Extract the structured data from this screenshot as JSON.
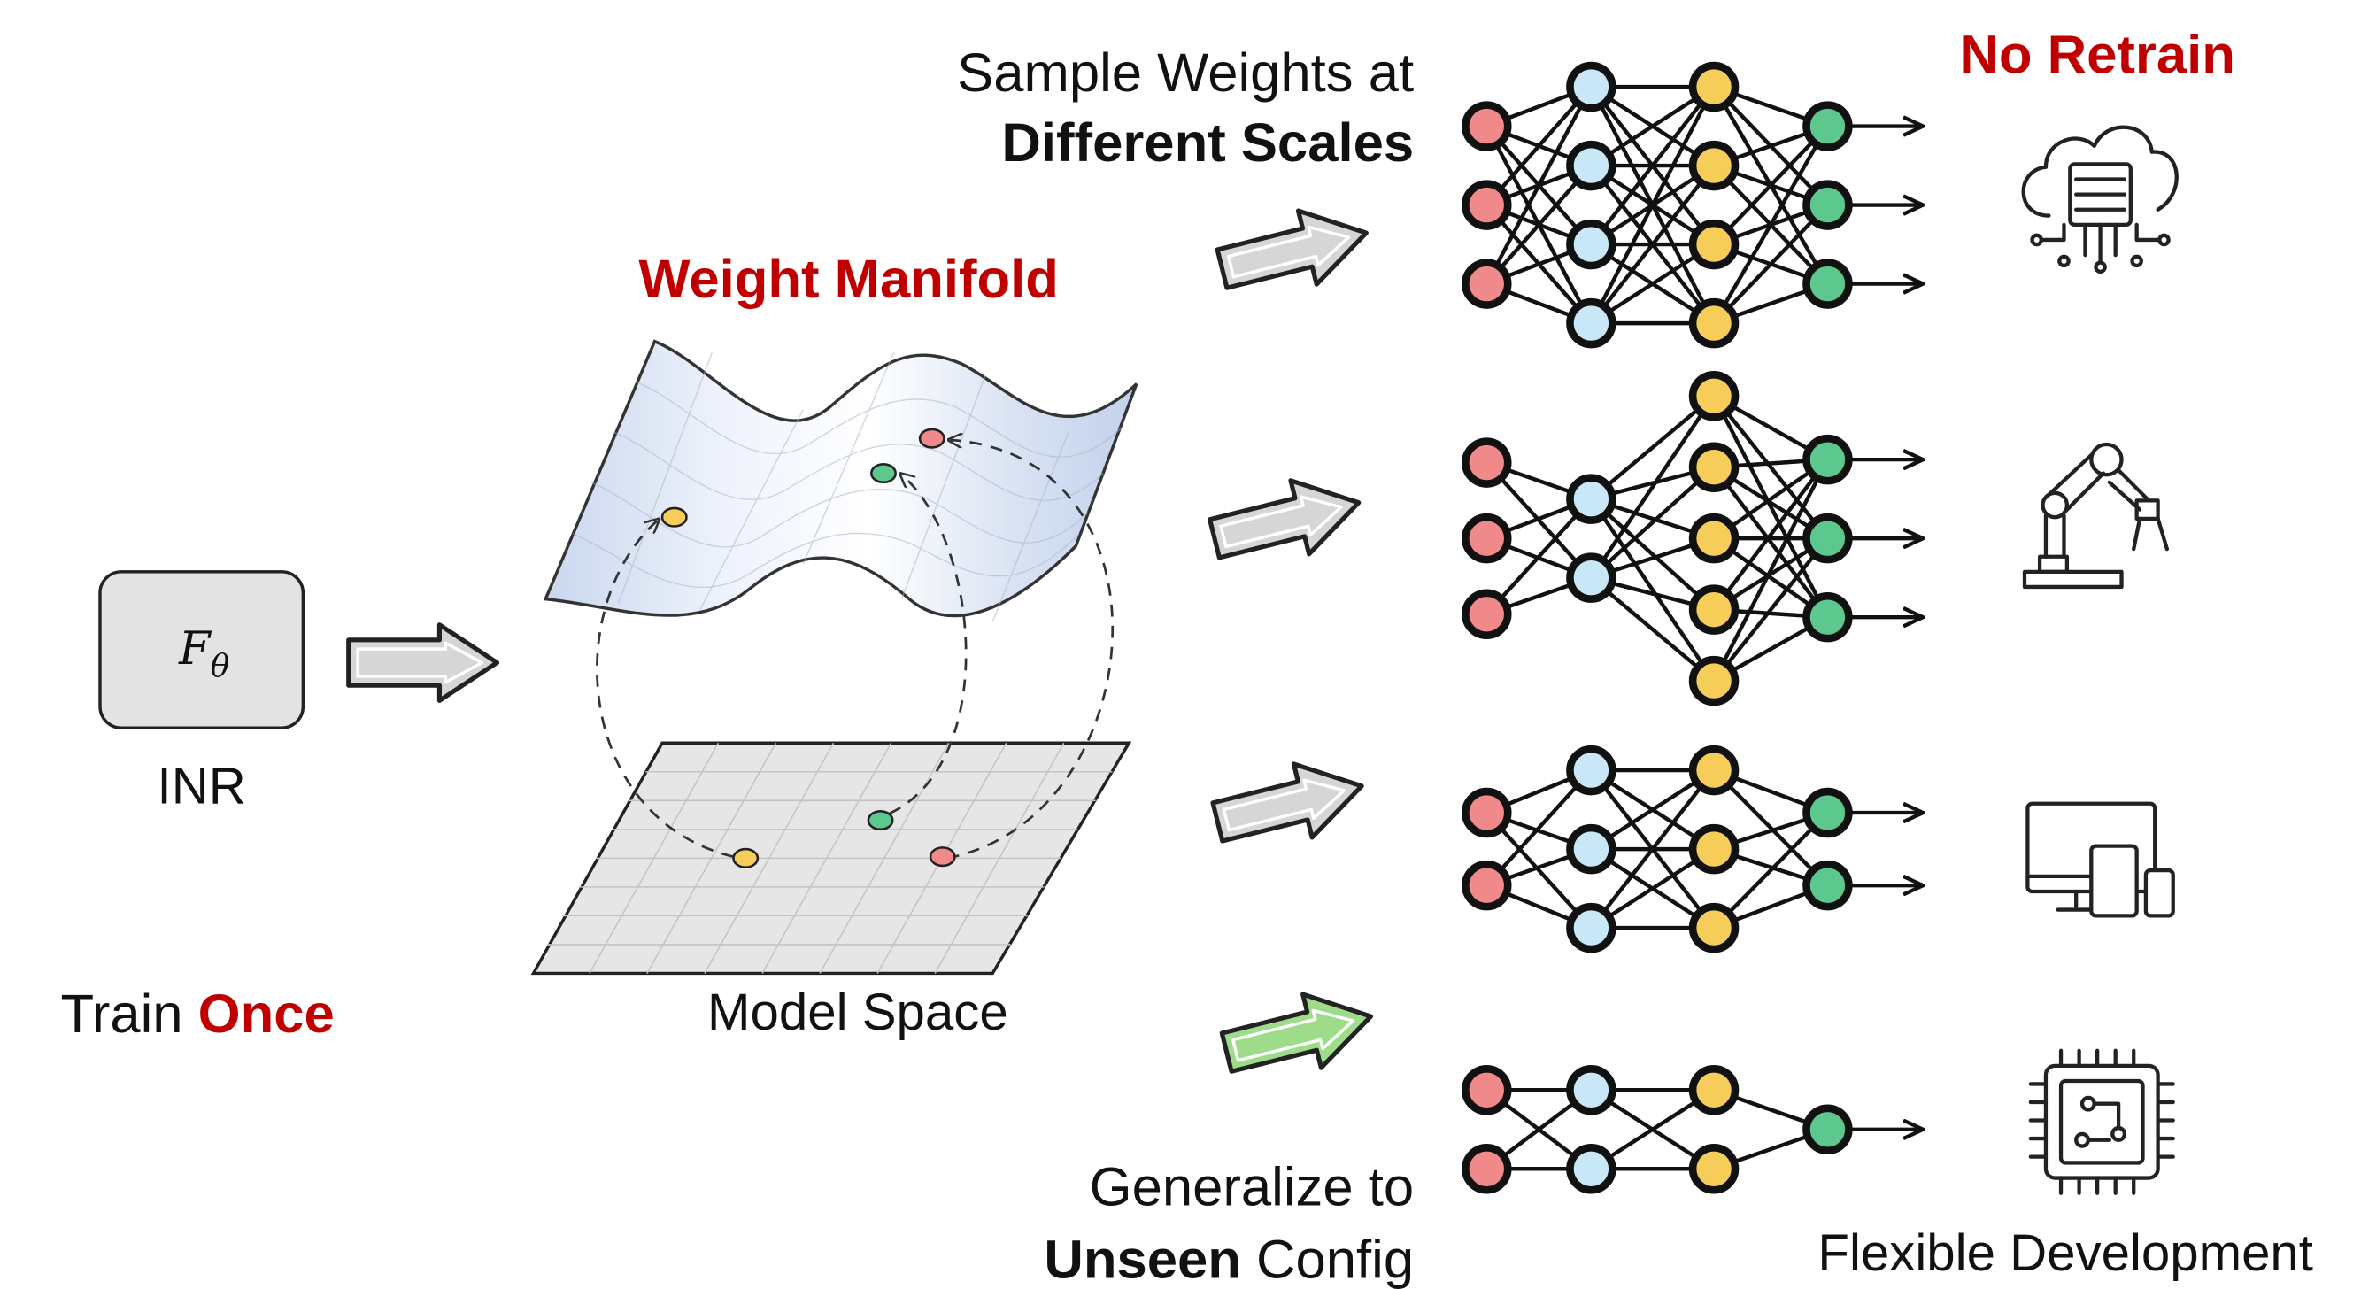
{
  "colors": {
    "accent_red": "#c00000",
    "input_node": "#f08a8a",
    "hidden_node_blue": "#c9e8f7",
    "hidden_node_yellow": "#f7cd5a",
    "output_node": "#5cc88e",
    "arrow_gray": "#d6d6d6",
    "arrow_green": "#9fdc8a"
  },
  "inr": {
    "formula_main": "F",
    "formula_sub": "θ",
    "label": "INR"
  },
  "train_once": {
    "prefix": "Train ",
    "emphasis": "Once"
  },
  "manifold": {
    "title": "Weight Manifold",
    "plane_label": "Model Space"
  },
  "sample_text": {
    "line1": "Sample Weights at",
    "line2": "Different Scales"
  },
  "generalize_text": {
    "line1": "Generalize to",
    "line2_bold": "Unseen",
    "line2_rest": " Config"
  },
  "no_retrain": "No Retrain",
  "flexible": "Flexible Development",
  "networks": [
    {
      "layers": [
        3,
        4,
        4,
        3
      ],
      "hidden_colors": [
        "blue",
        "yellow"
      ],
      "arrow": "gray"
    },
    {
      "layers": [
        3,
        2,
        5,
        3
      ],
      "hidden_colors": [
        "blue",
        "yellow"
      ],
      "arrow": "gray"
    },
    {
      "layers": [
        2,
        3,
        3,
        2
      ],
      "hidden_colors": [
        "blue",
        "yellow"
      ],
      "arrow": "gray"
    },
    {
      "layers": [
        2,
        2,
        2,
        1
      ],
      "hidden_colors": [
        "blue",
        "yellow"
      ],
      "arrow": "green"
    }
  ],
  "devices": [
    "cloud-server-icon",
    "robot-arm-icon",
    "devices-icon",
    "chip-icon"
  ]
}
